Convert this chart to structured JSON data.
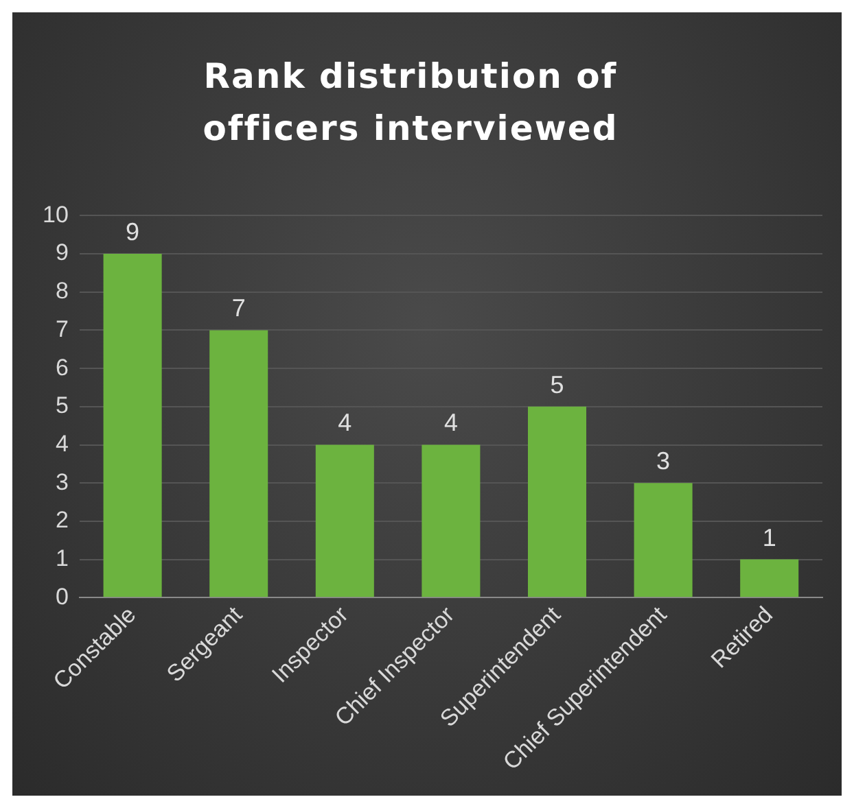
{
  "chart_data": {
    "type": "bar",
    "title": "Rank distribution of officers interviewed",
    "categories": [
      "Constable",
      "Sergeant",
      "Inspector",
      "Chief Inspector",
      "Superintendent",
      "Chief Superintendent",
      "Retired"
    ],
    "values": [
      9,
      7,
      4,
      4,
      5,
      3,
      1
    ],
    "color": "#6cb33f",
    "ylim": [
      0,
      10
    ],
    "yticks": [
      0,
      1,
      2,
      3,
      4,
      5,
      6,
      7,
      8,
      9,
      10
    ],
    "grid": "y",
    "data_labels": true,
    "legend": false
  }
}
